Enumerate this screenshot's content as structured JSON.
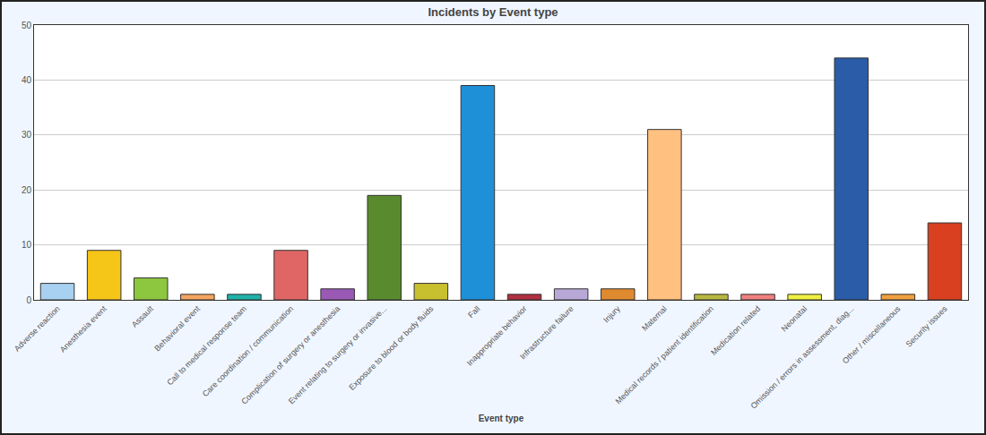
{
  "chart_data": {
    "type": "bar",
    "title": "Incidents by Event type",
    "x_label": "Event type",
    "categories": [
      "Adverse reaction",
      "Anesthesia event",
      "Assault",
      "Behavioral event",
      "Call to medical response team",
      "Care coordination / communication",
      "Complication of surgery or anesthesia",
      "Event relating to surgery or invasive...",
      "Exposure to blood or body fluids",
      "Fall",
      "Inappropriate behavior",
      "Infrastructure failure",
      "Injury",
      "Maternal",
      "Medical records / patient identification",
      "Medication related",
      "Neonatal",
      "Omission / errors in assessment, diag...",
      "Other / miscellaneous",
      "Security issues"
    ],
    "values": [
      3,
      9,
      4,
      1,
      1,
      9,
      2,
      19,
      3,
      39,
      1,
      2,
      2,
      31,
      1,
      1,
      1,
      44,
      1,
      14
    ],
    "colors": [
      "#a8d0f0",
      "#f5c518",
      "#8dc63f",
      "#f4a460",
      "#20b2aa",
      "#e06666",
      "#9b59b6",
      "#5a8a2e",
      "#c9c030",
      "#1e90d8",
      "#b03040",
      "#b8a8d8",
      "#e08a30",
      "#ffc080",
      "#b8b840",
      "#f08080",
      "#f0f040",
      "#2a5ca8",
      "#f0a040",
      "#d84020"
    ],
    "ylim": [
      0,
      50
    ],
    "yticks": [
      0,
      10,
      20,
      30,
      40,
      50
    ],
    "grid": true
  }
}
